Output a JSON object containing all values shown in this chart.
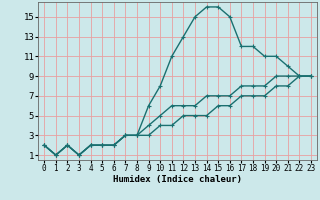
{
  "xlabel": "Humidex (Indice chaleur)",
  "bg_color": "#cce8ea",
  "grid_color": "#e8a0a0",
  "line_color": "#1a7070",
  "xlim": [
    -0.5,
    23.5
  ],
  "ylim": [
    0.5,
    16.5
  ],
  "xticks": [
    0,
    1,
    2,
    3,
    4,
    5,
    6,
    7,
    8,
    9,
    10,
    11,
    12,
    13,
    14,
    15,
    16,
    17,
    18,
    19,
    20,
    21,
    22,
    23
  ],
  "yticks": [
    1,
    3,
    5,
    7,
    9,
    11,
    13,
    15
  ],
  "line1_x": [
    0,
    1,
    2,
    3,
    4,
    5,
    6,
    7,
    8,
    9,
    10,
    11,
    12,
    13,
    14,
    15,
    16,
    17,
    18,
    19,
    20,
    21,
    22,
    23
  ],
  "line1_y": [
    2,
    1,
    2,
    1,
    2,
    2,
    2,
    3,
    3,
    6,
    8,
    11,
    13,
    15,
    16,
    16,
    15,
    12,
    12,
    11,
    11,
    10,
    9,
    9
  ],
  "line2_x": [
    0,
    1,
    2,
    3,
    4,
    5,
    6,
    7,
    8,
    9,
    10,
    11,
    12,
    13,
    14,
    15,
    16,
    17,
    18,
    19,
    20,
    21,
    22,
    23
  ],
  "line2_y": [
    2,
    1,
    2,
    1,
    2,
    2,
    2,
    3,
    3,
    4,
    5,
    6,
    6,
    6,
    7,
    7,
    7,
    8,
    8,
    8,
    9,
    9,
    9,
    9
  ],
  "line3_x": [
    0,
    1,
    2,
    3,
    4,
    5,
    6,
    7,
    8,
    9,
    10,
    11,
    12,
    13,
    14,
    15,
    16,
    17,
    18,
    19,
    20,
    21,
    22,
    23
  ],
  "line3_y": [
    2,
    1,
    2,
    1,
    2,
    2,
    2,
    3,
    3,
    3,
    4,
    4,
    5,
    5,
    5,
    6,
    6,
    7,
    7,
    7,
    8,
    8,
    9,
    9
  ],
  "marker": "+",
  "marker_size": 3,
  "linewidth": 1.0
}
